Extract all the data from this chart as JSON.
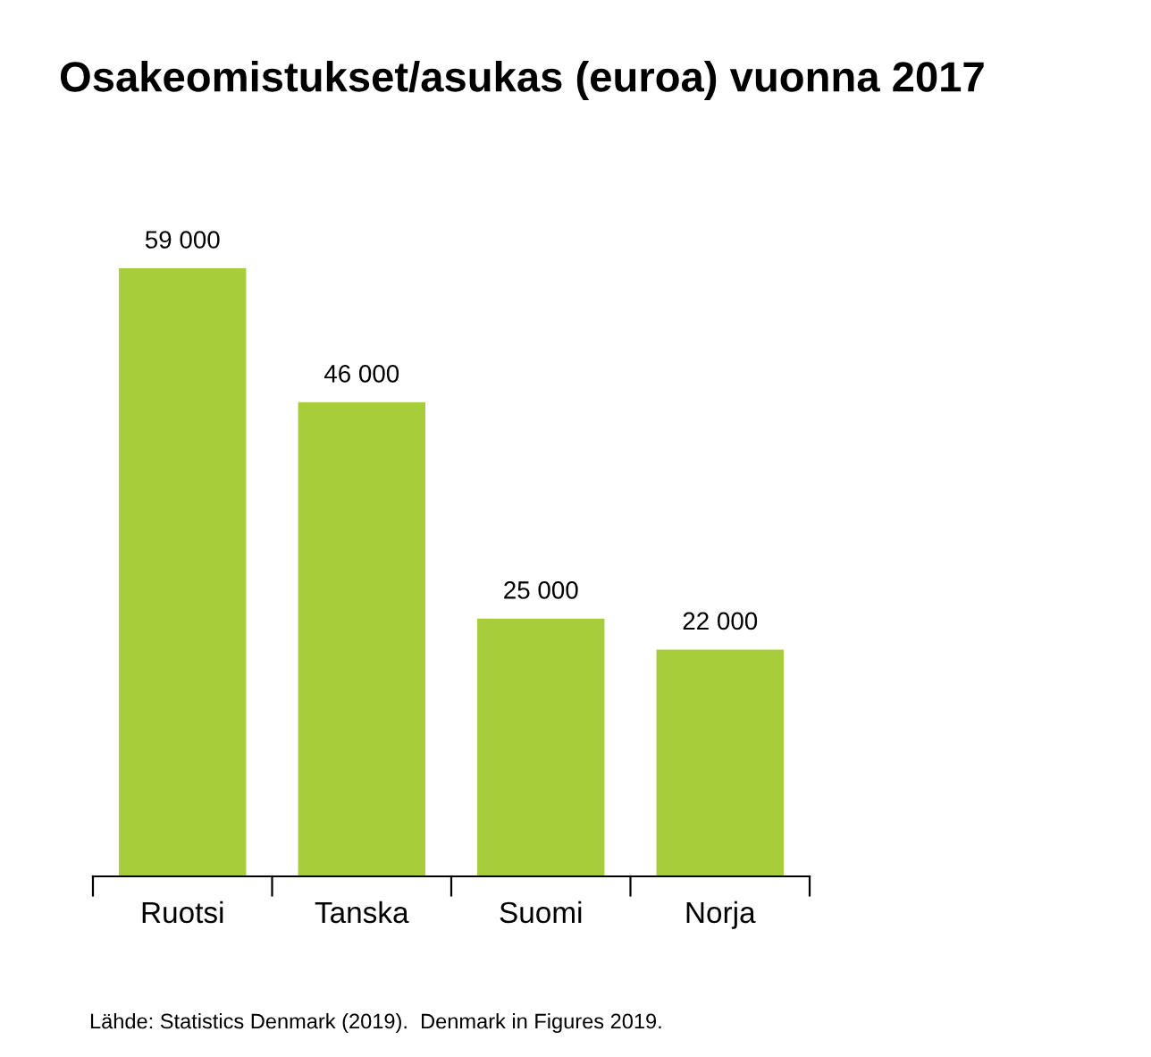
{
  "chart_data": {
    "type": "bar",
    "title": "Osakeomistukset/asukas (euroa) vuonna 2017",
    "categories": [
      "Ruotsi",
      "Tanska",
      "Suomi",
      "Norja"
    ],
    "values": [
      59000,
      46000,
      25000,
      22000
    ],
    "value_labels": [
      "59 000",
      "46 000",
      "25 000",
      "22 000"
    ],
    "color": "#a8cd3b",
    "grid": false,
    "legend": false,
    "tick_labels": "x",
    "annotations": [
      "Lähde: Statistics Denmark (2019).  Denmark in Figures 2019."
    ]
  }
}
